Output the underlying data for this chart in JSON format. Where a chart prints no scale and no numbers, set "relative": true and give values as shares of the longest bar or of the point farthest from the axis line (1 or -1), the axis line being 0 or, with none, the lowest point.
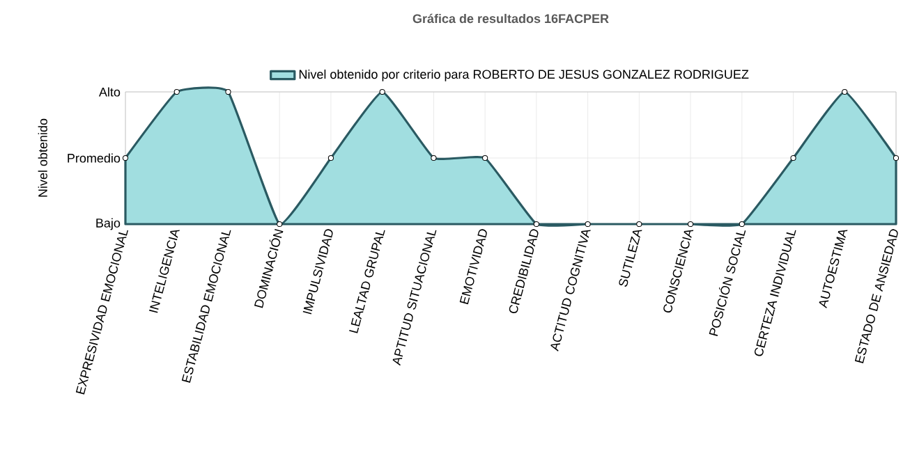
{
  "chart_data": {
    "type": "area",
    "title": "Gráfica de resultados 16FACPER",
    "ylabel": "Nivel obtenido",
    "relative": true,
    "categories": [
      "EXPRESIVIDAD EMOCIONAL",
      "INTELIGENCIA",
      "ESTABILIDAD EMOCIONAL",
      "DOMINACIÓN",
      "IMPULSIVIDAD",
      "LEALTAD GRUPAL",
      "APTITUD SITUACIONAL",
      "EMOTIVIDAD",
      "CREDIBILIDAD",
      "ACTITUD COGNITIVA",
      "SUTILEZA",
      "CONSCIENCIA",
      "POSICIÓN SOCIAL",
      "CERTEZA INDIVIDUAL",
      "AUTOESTIMA",
      "ESTADO DE ANSIEDAD"
    ],
    "series": [
      {
        "name": "Nivel obtenido por criterio para ROBERTO DE JESUS GONZALEZ RODRIGUEZ",
        "color": "#2a5a62",
        "values": [
          0.5,
          1,
          1,
          0,
          0.5,
          1,
          0.5,
          0.5,
          0,
          0,
          0,
          0,
          0,
          0.5,
          1,
          0.5
        ]
      }
    ],
    "annotations": [
      "Bajo",
      "Promedio",
      "Alto"
    ],
    "grid": true,
    "legend": "top",
    "marker": "circle",
    "line_style": "solid"
  }
}
